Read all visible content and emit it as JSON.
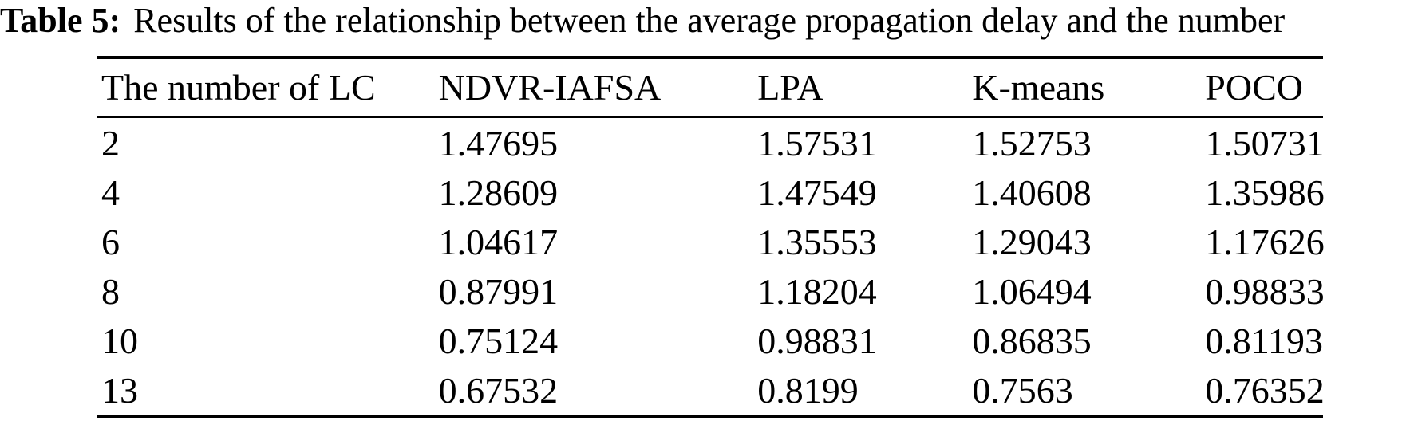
{
  "caption": {
    "label": "Table 5:",
    "text": "Results of the relationship between the average propagation delay and the number"
  },
  "table": {
    "columns": [
      "The number of LC",
      "NDVR-IAFSA",
      "LPA",
      "K-means",
      "POCO"
    ],
    "rows": [
      [
        "2",
        "1.47695",
        "1.57531",
        "1.52753",
        "1.50731"
      ],
      [
        "4",
        "1.28609",
        "1.47549",
        "1.40608",
        "1.35986"
      ],
      [
        "6",
        "1.04617",
        "1.35553",
        "1.29043",
        "1.17626"
      ],
      [
        "8",
        "0.87991",
        "1.18204",
        "1.06494",
        "0.98833"
      ],
      [
        "10",
        "0.75124",
        "0.98831",
        "0.86835",
        "0.81193"
      ],
      [
        "13",
        "0.67532",
        "0.8199",
        "0.7563",
        "0.76352"
      ]
    ]
  }
}
